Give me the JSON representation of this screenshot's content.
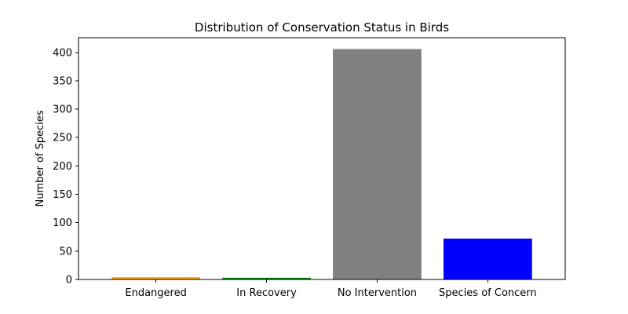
{
  "chart_data": {
    "type": "bar",
    "title": "Distribution of Conservation Status in Birds",
    "xlabel": "",
    "ylabel": "Number of Species",
    "categories": [
      "Endangered",
      "In Recovery",
      "No Intervention",
      "Species of Concern"
    ],
    "values": [
      4,
      3,
      406,
      72
    ],
    "colors": [
      "#ffa500",
      "#008000",
      "#808080",
      "#0000ff"
    ],
    "yticks": [
      0,
      50,
      100,
      150,
      200,
      250,
      300,
      350,
      400
    ],
    "ylim": [
      0,
      426
    ],
    "grid": false,
    "legend": "none"
  }
}
